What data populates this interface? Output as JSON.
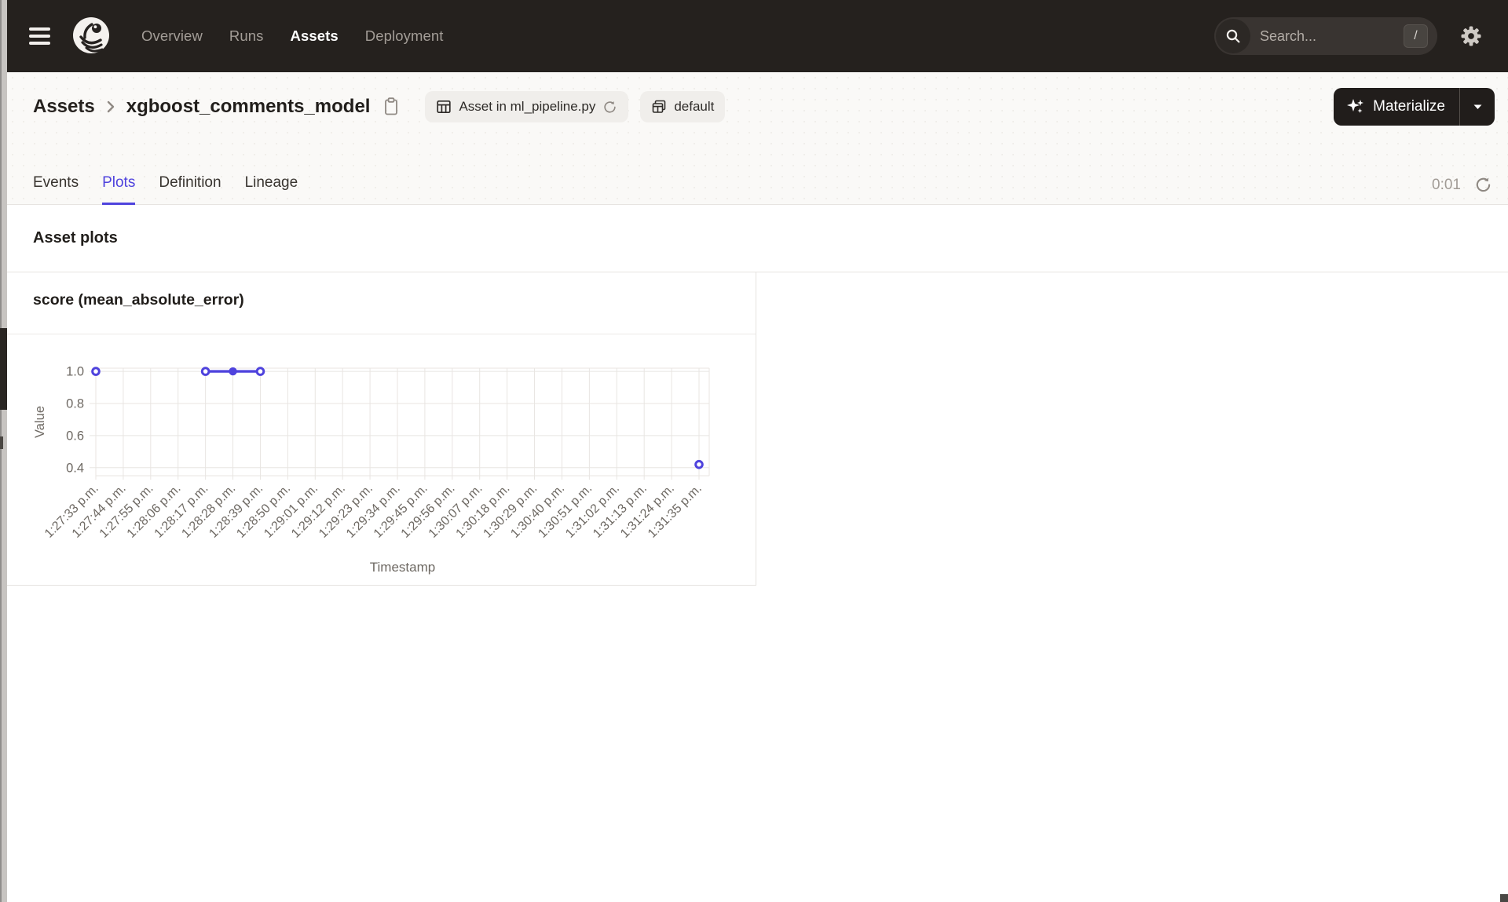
{
  "nav": {
    "links": [
      {
        "label": "Overview",
        "active": false
      },
      {
        "label": "Runs",
        "active": false
      },
      {
        "label": "Assets",
        "active": true
      },
      {
        "label": "Deployment",
        "active": false
      }
    ],
    "search": {
      "placeholder": "Search...",
      "shortcut": "/"
    }
  },
  "header": {
    "breadcrumb": {
      "root": "Assets",
      "current": "xgboost_comments_model"
    },
    "chips": [
      {
        "label": "Asset in ml_pipeline.py",
        "icon": "table-icon",
        "has_refresh": true
      },
      {
        "label": "default",
        "icon": "table-group-icon",
        "has_refresh": false
      }
    ],
    "materialize_label": "Materialize"
  },
  "tabs": {
    "items": [
      {
        "label": "Events",
        "active": false
      },
      {
        "label": "Plots",
        "active": true
      },
      {
        "label": "Definition",
        "active": false
      },
      {
        "label": "Lineage",
        "active": false
      }
    ],
    "elapsed": "0:01"
  },
  "section": {
    "title": "Asset plots"
  },
  "colors": {
    "accent": "#4f43dd",
    "nav_bg": "#25211e",
    "grid": "#e8e5e2",
    "axis_text": "#6e6963"
  },
  "chart_data": {
    "type": "line",
    "title": "score (mean_absolute_error)",
    "xlabel": "Timestamp",
    "ylabel": "Value",
    "yticks": [
      0.4,
      0.6,
      0.8,
      1.0
    ],
    "ylim": [
      0.35,
      1.02
    ],
    "grid": true,
    "legend_position": "none",
    "line_color": "#4f43dd",
    "categories": [
      "1:27:33 p.m.",
      "1:27:44 p.m.",
      "1:27:55 p.m.",
      "1:28:06 p.m.",
      "1:28:17 p.m.",
      "1:28:28 p.m.",
      "1:28:39 p.m.",
      "1:28:50 p.m.",
      "1:29:01 p.m.",
      "1:29:12 p.m.",
      "1:29:23 p.m.",
      "1:29:34 p.m.",
      "1:29:45 p.m.",
      "1:29:56 p.m.",
      "1:30:07 p.m.",
      "1:30:18 p.m.",
      "1:30:29 p.m.",
      "1:30:40 p.m.",
      "1:30:51 p.m.",
      "1:31:02 p.m.",
      "1:31:13 p.m.",
      "1:31:24 p.m.",
      "1:31:35 p.m."
    ],
    "values": [
      1.0,
      null,
      null,
      null,
      1.0,
      1.0,
      1.0,
      null,
      null,
      null,
      null,
      null,
      null,
      null,
      null,
      null,
      null,
      null,
      null,
      null,
      null,
      null,
      0.42
    ]
  }
}
